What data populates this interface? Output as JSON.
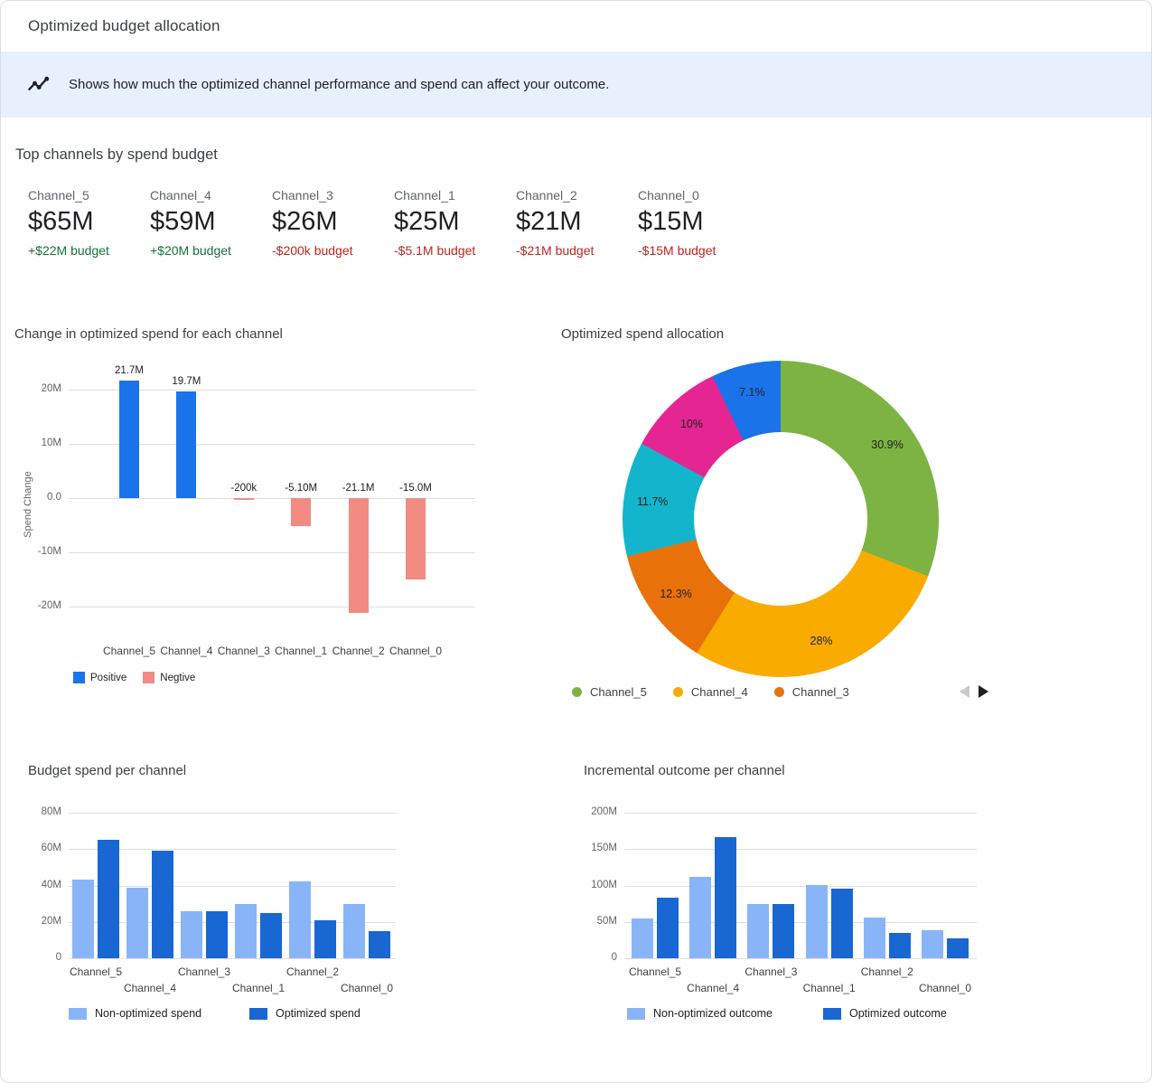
{
  "header": {
    "title": "Optimized budget allocation"
  },
  "banner": {
    "icon": "insights-icon",
    "text": "Shows how much the optimized channel performance and spend can affect your outcome."
  },
  "top_channels": {
    "heading": "Top channels by spend budget",
    "cards": [
      {
        "name": "Channel_5",
        "value": "$65M",
        "delta": "+$22M budget",
        "trend": "positive"
      },
      {
        "name": "Channel_4",
        "value": "$59M",
        "delta": "+$20M budget",
        "trend": "positive"
      },
      {
        "name": "Channel_3",
        "value": "$26M",
        "delta": "-$200k budget",
        "trend": "negative"
      },
      {
        "name": "Channel_1",
        "value": "$25M",
        "delta": "-$5.1M budget",
        "trend": "negative"
      },
      {
        "name": "Channel_2",
        "value": "$21M",
        "delta": "-$21M budget",
        "trend": "negative"
      },
      {
        "name": "Channel_0",
        "value": "$15M",
        "delta": "-$15M budget",
        "trend": "negative"
      }
    ]
  },
  "colors": {
    "positive_text": "#137333",
    "negative_text": "#c5221f",
    "positive_bar": "#1a73e8",
    "negative_bar": "#f28b82",
    "non_optimized_bar": "#8ab4f8",
    "optimized_bar": "#1967d2",
    "banner_bg": "#e8f0fe"
  },
  "chart_data": [
    {
      "type": "bar",
      "title": "Change in optimized spend for each channel",
      "ylabel": "Spend Change",
      "categories": [
        "Channel_5",
        "Channel_4",
        "Channel_3",
        "Channel_1",
        "Channel_2",
        "Channel_0"
      ],
      "values": [
        21.7,
        19.7,
        -0.2,
        -5.1,
        -21.1,
        -15.0
      ],
      "unit": "M",
      "bar_labels": [
        "21.7M",
        "19.7M",
        "-200k",
        "-5.10M",
        "-21.1M",
        "-15.0M"
      ],
      "ytick_labels": [
        "20M",
        "10M",
        "0.0",
        "-10M",
        "-20M"
      ],
      "ytick_values": [
        20,
        10,
        0,
        -10,
        -20
      ],
      "ylim": [
        -25.3,
        23.3
      ],
      "legend": [
        {
          "label": "Positive",
          "color": "#1a73e8"
        },
        {
          "label": "Negtive",
          "color": "#f28b82"
        }
      ]
    },
    {
      "type": "pie",
      "title": "Optimized spend allocation",
      "donut": true,
      "slices": [
        {
          "name": "Channel_5",
          "label": "30.9%",
          "value": 30.9,
          "color": "#7cb342"
        },
        {
          "name": "Channel_4",
          "label": "28%",
          "value": 28,
          "color": "#f9ab00"
        },
        {
          "name": "Channel_3",
          "label": "12.3%",
          "value": 12.3,
          "color": "#e8710a"
        },
        {
          "label": "11.7%",
          "value": 11.7,
          "color": "#12b5cb"
        },
        {
          "label": "10%",
          "value": 10,
          "color": "#e52592"
        },
        {
          "label": "7.1%",
          "value": 7.1,
          "color": "#1a73e8"
        }
      ],
      "legend": [
        {
          "label": "Channel_5",
          "color": "#7cb342"
        },
        {
          "label": "Channel_4",
          "color": "#f9ab00"
        },
        {
          "label": "Channel_3",
          "color": "#e8710a"
        }
      ],
      "pagination": {
        "prev_enabled": false,
        "next_enabled": true
      }
    },
    {
      "type": "bar",
      "title": "Budget spend per channel",
      "categories": [
        "Channel_5",
        "Channel_4",
        "Channel_3",
        "Channel_1",
        "Channel_2",
        "Channel_0"
      ],
      "series": [
        {
          "name": "Non-optimized spend",
          "color": "#8ab4f8",
          "values": [
            43,
            39,
            26,
            30,
            42,
            30
          ]
        },
        {
          "name": "Optimized spend",
          "color": "#1967d2",
          "values": [
            65,
            59,
            26,
            25,
            21,
            15
          ]
        }
      ],
      "unit": "M",
      "ytick_labels": [
        "0",
        "20M",
        "40M",
        "60M",
        "80M"
      ],
      "ytick_values": [
        0,
        20,
        40,
        60,
        80
      ],
      "ylim": [
        0,
        80
      ]
    },
    {
      "type": "bar",
      "title": "Incremental outcome per channel",
      "categories": [
        "Channel_5",
        "Channel_4",
        "Channel_3",
        "Channel_1",
        "Channel_2",
        "Channel_0"
      ],
      "series": [
        {
          "name": "Non-optimized outcome",
          "color": "#8ab4f8",
          "values": [
            55,
            112,
            75,
            101,
            56,
            39
          ]
        },
        {
          "name": "Optimized outcome",
          "color": "#1967d2",
          "values": [
            83,
            167,
            75,
            96,
            35,
            27
          ]
        }
      ],
      "unit": "M",
      "ytick_labels": [
        "0",
        "50M",
        "100M",
        "150M",
        "200M"
      ],
      "ytick_values": [
        0,
        50,
        100,
        150,
        200
      ],
      "ylim": [
        0,
        200
      ]
    }
  ]
}
